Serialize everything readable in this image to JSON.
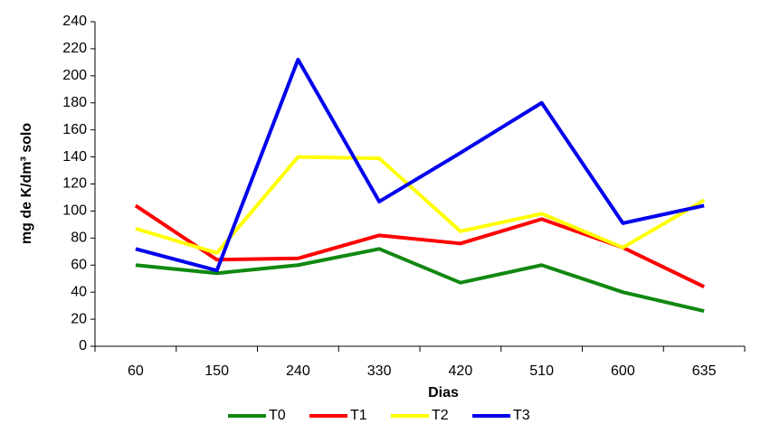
{
  "chart_data": {
    "type": "line",
    "x_label": "Dias",
    "y_label": "mg de K/dm³ solo",
    "categories": [
      "60",
      "150",
      "240",
      "330",
      "420",
      "510",
      "600",
      "635"
    ],
    "series": [
      {
        "name": "T0",
        "color": "#118811",
        "values": [
          60,
          54,
          60,
          72,
          47,
          60,
          40,
          26
        ]
      },
      {
        "name": "T1",
        "color": "#ff0000",
        "values": [
          104,
          64,
          65,
          82,
          76,
          94,
          73,
          44
        ]
      },
      {
        "name": "T2",
        "color": "#ffff00",
        "values": [
          87,
          69,
          140,
          139,
          85,
          98,
          73,
          108
        ]
      },
      {
        "name": "T3",
        "color": "#0000ee",
        "values": [
          72,
          56,
          212,
          107,
          143,
          180,
          91,
          104
        ]
      }
    ],
    "ylim": [
      0,
      240
    ],
    "yticks": [
      0,
      20,
      40,
      60,
      80,
      100,
      120,
      140,
      160,
      180,
      200,
      220,
      240
    ],
    "legend": "bottom"
  }
}
